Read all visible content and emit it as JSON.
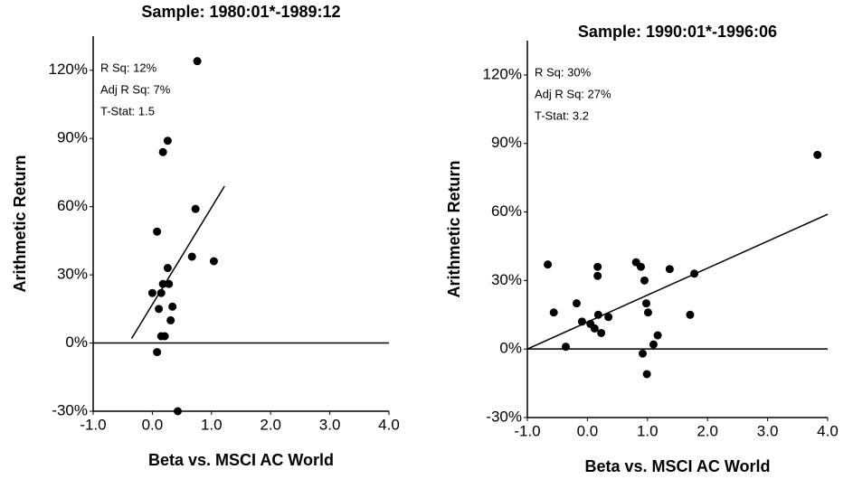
{
  "chart_data": [
    {
      "type": "scatter",
      "title": "Sample: 1980:01*-1989:12",
      "x_label": "Beta vs. MSCI AC World",
      "y_label": "Arithmetic Return",
      "annotations": [
        "R Sq: 12%",
        "Adj R Sq: 7%",
        "T-Stat: 1.5"
      ],
      "color": "#000000",
      "x": [
        0.76,
        0.26,
        0.18,
        0.73,
        0.08,
        0.67,
        1.04,
        0.26,
        0.0,
        0.18,
        0.28,
        0.15,
        0.34,
        0.11,
        0.15,
        0.21,
        0.31,
        0.08,
        0.43
      ],
      "y": [
        124,
        89,
        84,
        59,
        49,
        38,
        36,
        33,
        22,
        26,
        26,
        22,
        16,
        15,
        3,
        3,
        10,
        -4,
        -30
      ],
      "trendline": {
        "x": [
          -0.35,
          1.22
        ],
        "y": [
          2,
          69
        ]
      },
      "hline": 0,
      "xlim": [
        -1.0,
        4.0
      ],
      "xticks": [
        {
          "value": -1,
          "label": "-1.0"
        },
        {
          "value": 0,
          "label": "0.0"
        },
        {
          "value": 1,
          "label": "1.0"
        },
        {
          "value": 2,
          "label": "2.0"
        },
        {
          "value": 3,
          "label": "3.0"
        },
        {
          "value": 4,
          "label": "4.0"
        }
      ],
      "ylim": [
        -30,
        135
      ],
      "yticks": [
        {
          "value": -30,
          "label": "-30%"
        },
        {
          "value": 0,
          "label": "0%"
        },
        {
          "value": 30,
          "label": "30%"
        },
        {
          "value": 60,
          "label": "60%"
        },
        {
          "value": 90,
          "label": "90%"
        },
        {
          "value": 120,
          "label": "120%"
        }
      ]
    },
    {
      "type": "scatter",
      "title": "Sample: 1990:01*-1996:06",
      "x_label": "Beta vs. MSCI AC World",
      "y_label": "Arithmetic Return",
      "annotations": [
        "R Sq: 30%",
        "Adj R Sq: 27%",
        "T-Stat: 3.2"
      ],
      "color": "#000000",
      "x": [
        3.83,
        -0.66,
        0.81,
        0.89,
        0.17,
        1.37,
        0.17,
        0.95,
        1.78,
        -0.56,
        -0.18,
        0.18,
        0.35,
        -0.09,
        0.05,
        0.12,
        0.23,
        0.98,
        1.01,
        1.71,
        1.17,
        1.1,
        -0.36,
        0.92,
        0.99
      ],
      "y": [
        85,
        37,
        38,
        36,
        36,
        35,
        32,
        30,
        33,
        16,
        20,
        15,
        14,
        12,
        11,
        9,
        7,
        20,
        16,
        15,
        6,
        2,
        1,
        -2,
        -11
      ],
      "trendline": {
        "x": [
          -1.0,
          4.0
        ],
        "y": [
          0,
          59
        ]
      },
      "hline": 0,
      "xlim": [
        -1.0,
        4.0
      ],
      "xticks": [
        {
          "value": -1,
          "label": "-1.0"
        },
        {
          "value": 0,
          "label": "0.0"
        },
        {
          "value": 1,
          "label": "1.0"
        },
        {
          "value": 2,
          "label": "2.0"
        },
        {
          "value": 3,
          "label": "3.0"
        },
        {
          "value": 4,
          "label": "4.0"
        }
      ],
      "ylim": [
        -30,
        135
      ],
      "yticks": [
        {
          "value": -30,
          "label": "-30%"
        },
        {
          "value": 0,
          "label": "0%"
        },
        {
          "value": 30,
          "label": "30%"
        },
        {
          "value": 60,
          "label": "60%"
        },
        {
          "value": 90,
          "label": "90%"
        },
        {
          "value": 120,
          "label": "120%"
        }
      ]
    }
  ]
}
